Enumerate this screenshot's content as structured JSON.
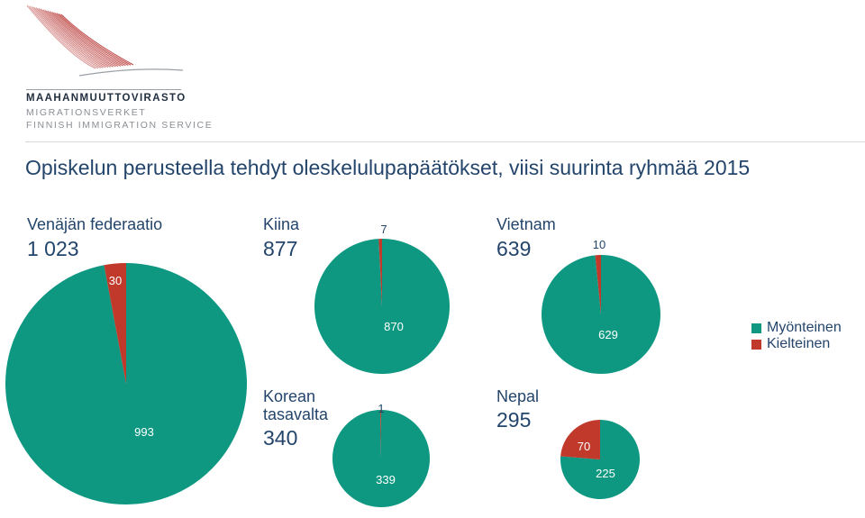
{
  "header": {
    "org_name": "MAAHANMUUTTOVIRASTO",
    "org_name_sv": "MIGRATIONSVERKET",
    "org_name_en": "FINNISH IMMIGRATION SERVICE"
  },
  "colors": {
    "positive": "#0e9882",
    "negative": "#c0392b",
    "logo": "#c0504d"
  },
  "chart_data": {
    "type": "pie",
    "title": "Opiskelun perusteella tehdyt oleskelulupapäätökset, viisi suurinta ryhmää 2015",
    "legend": [
      {
        "name": "Myönteinen",
        "color": "#0e9882"
      },
      {
        "name": "Kielteinen",
        "color": "#c0392b"
      }
    ],
    "legend_position": "right",
    "pies": [
      {
        "name_lines": [
          "Venäjän federaatio"
        ],
        "total": "1 023",
        "values": [
          993,
          30
        ],
        "value_labels": [
          "993",
          "30"
        ]
      },
      {
        "name_lines": [
          "Kiina"
        ],
        "total": "877",
        "values": [
          870,
          7
        ],
        "value_labels": [
          "870",
          "7"
        ]
      },
      {
        "name_lines": [
          "Vietnam"
        ],
        "total": "639",
        "values": [
          629,
          10
        ],
        "value_labels": [
          "629",
          "10"
        ]
      },
      {
        "name_lines": [
          "Korean",
          "tasavalta"
        ],
        "total": "340",
        "values": [
          339,
          1
        ],
        "value_labels": [
          "339",
          "1"
        ]
      },
      {
        "name_lines": [
          "Nepal"
        ],
        "total": "295",
        "values": [
          225,
          70
        ],
        "value_labels": [
          "225",
          "70"
        ]
      }
    ]
  }
}
